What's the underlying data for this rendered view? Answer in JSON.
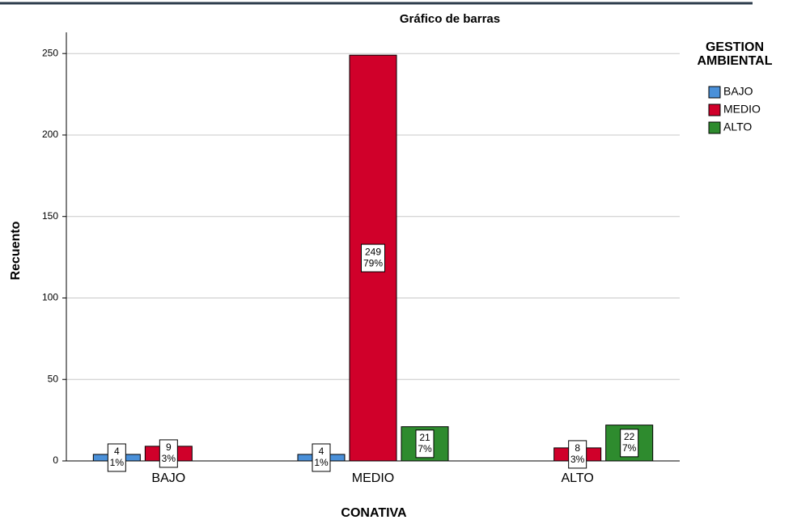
{
  "chart_data": {
    "type": "bar",
    "title": "Gráfico de barras",
    "xlabel": "CONATIVA",
    "ylabel": "Recuento",
    "legend_title": "GESTION AMBIENTAL",
    "legend_position": "right",
    "categories": [
      "BAJO",
      "MEDIO",
      "ALTO"
    ],
    "series": [
      {
        "name": "BAJO",
        "color": "#4a90d9",
        "values": [
          4,
          4,
          null
        ],
        "percent_labels": [
          "1%",
          "1%",
          null
        ]
      },
      {
        "name": "MEDIO",
        "color": "#d0002a",
        "values": [
          9,
          249,
          8
        ],
        "percent_labels": [
          "3%",
          "79%",
          "3%"
        ]
      },
      {
        "name": "ALTO",
        "color": "#2e8b2e",
        "values": [
          null,
          21,
          22
        ],
        "percent_labels": [
          null,
          "7%",
          "7%"
        ]
      }
    ],
    "ylim": [
      0,
      263
    ],
    "yticks": [
      0,
      50,
      100,
      150,
      200,
      250
    ],
    "grid": true
  }
}
